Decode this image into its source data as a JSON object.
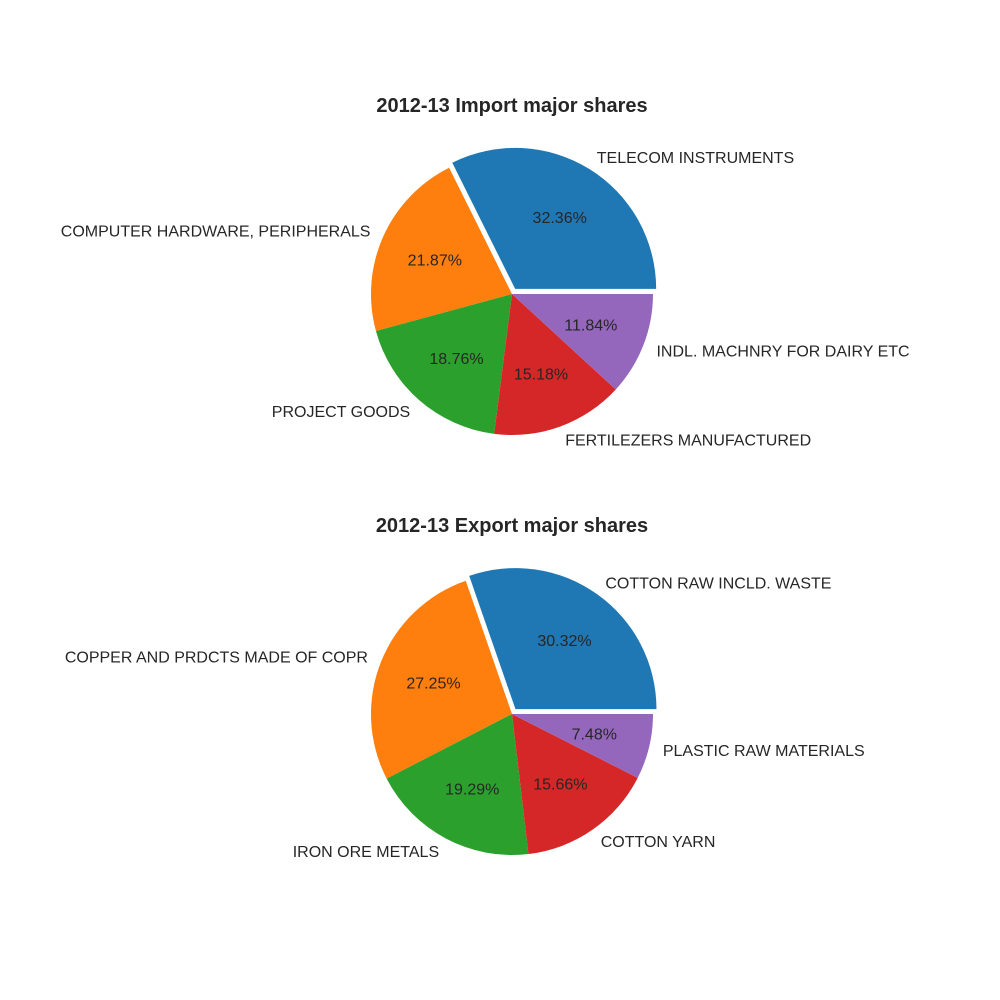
{
  "chart_data": [
    {
      "type": "pie",
      "title": "2012-13 Import major shares",
      "categories": [
        "TELECOM INSTRUMENTS",
        "COMPUTER HARDWARE, PERIPHERALS",
        "PROJECT GOODS",
        "FERTILEZERS MANUFACTURED",
        "INDL. MACHNRY FOR DAIRY ETC"
      ],
      "values": [
        32.36,
        21.87,
        18.76,
        15.18,
        11.84
      ],
      "value_labels": [
        "32.36%",
        "21.87%",
        "18.76%",
        "15.18%",
        "11.84%"
      ],
      "colors": [
        "#1f77b4",
        "#ff7f0e",
        "#2ca02c",
        "#d62728",
        "#9467bd"
      ],
      "exploded": [
        true,
        false,
        false,
        false,
        false
      ],
      "start_angle_deg": 0,
      "direction": "counterclockwise"
    },
    {
      "type": "pie",
      "title": "2012-13 Export major shares",
      "categories": [
        "COTTON RAW INCLD. WASTE",
        "COPPER AND PRDCTS MADE OF COPR",
        "IRON ORE METALS",
        "COTTON YARN",
        "PLASTIC RAW MATERIALS"
      ],
      "values": [
        30.32,
        27.25,
        19.29,
        15.66,
        7.48
      ],
      "value_labels": [
        "30.32%",
        "27.25%",
        "19.29%",
        "15.66%",
        "7.48%"
      ],
      "colors": [
        "#1f77b4",
        "#ff7f0e",
        "#2ca02c",
        "#d62728",
        "#9467bd"
      ],
      "exploded": [
        true,
        false,
        false,
        false,
        false
      ],
      "start_angle_deg": 0,
      "direction": "counterclockwise"
    }
  ]
}
